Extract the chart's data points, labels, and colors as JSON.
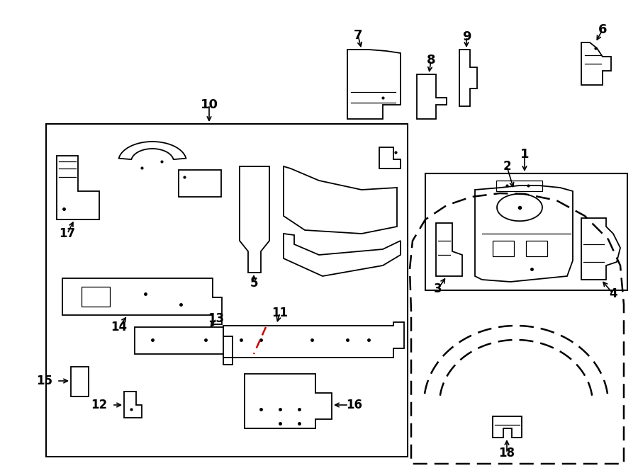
{
  "bg_color": "#ffffff",
  "line_color": "#000000",
  "red_color": "#cc0000",
  "fig_width": 9.0,
  "fig_height": 6.61
}
